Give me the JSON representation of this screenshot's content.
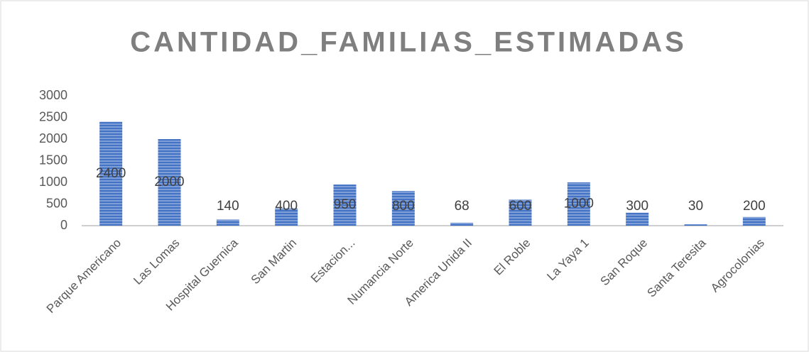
{
  "chart_data": {
    "type": "bar",
    "title": "CANTIDAD_FAMILIAS_ESTIMADAS",
    "categories": [
      "Parque Americano",
      "Las Lomas",
      "Hospital Guernica",
      "San Martin",
      "Estacion...",
      "Numancia Norte",
      "America Unida II",
      "El Roble",
      "La Yaya 1",
      "San Roque",
      "Santa Teresita",
      "Agrocolonias"
    ],
    "values": [
      2400,
      2000,
      140,
      400,
      950,
      800,
      68,
      600,
      1000,
      300,
      30,
      200
    ],
    "color": "#4472c4",
    "ylim": [
      0,
      3000
    ],
    "yticks": [
      0,
      500,
      1000,
      1500,
      2000,
      2500,
      3000
    ],
    "grid": false
  }
}
